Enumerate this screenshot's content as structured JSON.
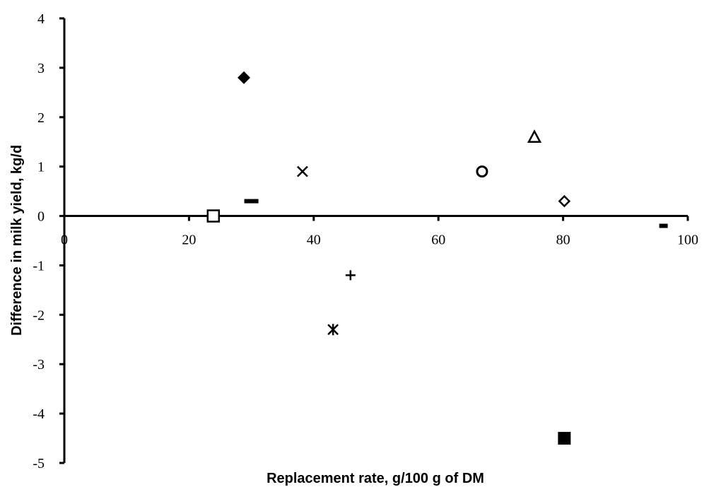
{
  "chart_data": {
    "type": "scatter",
    "title": "",
    "xlabel": "Replacement rate, g/100 g of DM",
    "ylabel": "Difference in milk yield, kg/d",
    "xlim": [
      0,
      100
    ],
    "ylim": [
      -5,
      4
    ],
    "x_ticks": [
      0,
      20,
      40,
      60,
      80,
      100
    ],
    "y_ticks": [
      4,
      3,
      2,
      1,
      0,
      -1,
      -2,
      -3,
      -4,
      -5
    ],
    "x_tick_labels": [
      "0",
      "20",
      "40",
      "60",
      "80",
      "100"
    ],
    "y_tick_labels": [
      "4",
      "3",
      "2",
      "1",
      "0",
      "-1",
      "-2",
      "-3",
      "-4",
      "-5"
    ],
    "grid": false,
    "legend": "none",
    "color": "#000000",
    "points": [
      {
        "x": 28.8,
        "y": 2.8,
        "marker": "filled-diamond"
      },
      {
        "x": 30.0,
        "y": 0.3,
        "marker": "dash"
      },
      {
        "x": 23.9,
        "y": 0.0,
        "marker": "open-square"
      },
      {
        "x": 38.2,
        "y": 0.9,
        "marker": "x-cross"
      },
      {
        "x": 43.1,
        "y": -2.3,
        "marker": "asterisk"
      },
      {
        "x": 45.9,
        "y": -1.2,
        "marker": "plus"
      },
      {
        "x": 67.0,
        "y": 0.9,
        "marker": "open-circle"
      },
      {
        "x": 75.4,
        "y": 1.6,
        "marker": "open-triangle"
      },
      {
        "x": 80.2,
        "y": 0.3,
        "marker": "open-diamond"
      },
      {
        "x": 80.2,
        "y": -4.5,
        "marker": "filled-square"
      },
      {
        "x": 96.1,
        "y": -0.2,
        "marker": "small-dash"
      }
    ]
  }
}
